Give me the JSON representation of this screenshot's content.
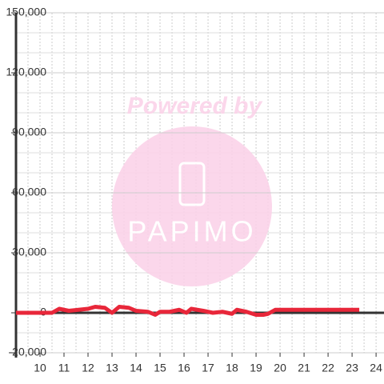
{
  "chart_data": {
    "type": "line",
    "x": [
      9,
      10,
      10.5,
      10.8,
      11.2,
      11.6,
      12,
      12.3,
      12.7,
      13,
      13.3,
      13.7,
      14,
      14.5,
      14.8,
      15,
      15.4,
      15.8,
      16.1,
      16.3,
      16.8,
      17.2,
      17.6,
      18,
      18.2,
      18.6,
      19,
      19.3,
      19.5,
      19.8,
      20,
      23.3
    ],
    "values": [
      0,
      0,
      0,
      2000,
      1000,
      1500,
      2000,
      3000,
      2500,
      0,
      3000,
      2500,
      1000,
      500,
      -1000,
      500,
      500,
      1500,
      0,
      2000,
      1000,
      0,
      500,
      -500,
      1500,
      500,
      -1000,
      -1000,
      -500,
      1500,
      1500,
      1500
    ],
    "color": "#e8273a",
    "xlim": [
      9,
      24.33
    ],
    "xticks": [
      10,
      11,
      12,
      13,
      14,
      15,
      16,
      17,
      18,
      19,
      20,
      21,
      22,
      23,
      24
    ],
    "ylim": [
      -20000,
      150000
    ],
    "yticks": [
      {
        "value": -20000,
        "label": "-20,000"
      },
      0,
      {
        "value": 30000,
        "label": "30,000"
      },
      {
        "value": 60000,
        "label": "60,000"
      },
      {
        "value": 90000,
        "label": "90,000"
      },
      {
        "value": 120000,
        "label": "120,000"
      },
      {
        "value": 150000,
        "label": "150,000"
      }
    ],
    "grid": true
  },
  "watermark": {
    "text": "Powered by",
    "logo": "PAPIMO"
  }
}
